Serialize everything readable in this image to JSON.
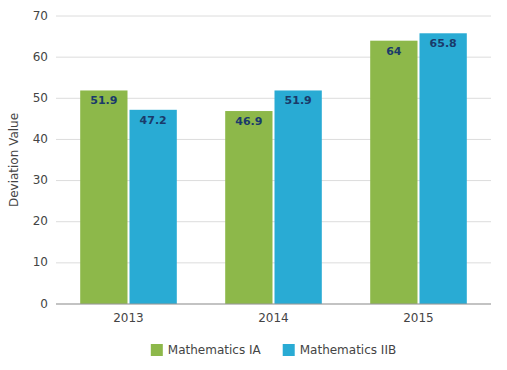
{
  "chart_data": {
    "type": "bar",
    "categories": [
      "2013",
      "2014",
      "2015"
    ],
    "series": [
      {
        "name": "Mathematics IA",
        "color": "#8DB84A",
        "values": [
          51.9,
          46.9,
          64.0
        ]
      },
      {
        "name": "Mathematics IIB",
        "color": "#29ABD4",
        "values": [
          47.2,
          51.9,
          65.8
        ]
      }
    ],
    "ylabel": "Deviation Value",
    "ylim": [
      0,
      70
    ],
    "yticks": [
      0,
      10,
      20,
      30,
      40,
      50,
      60,
      70
    ],
    "grid": true,
    "legend": "bottom",
    "data_labels": true
  }
}
